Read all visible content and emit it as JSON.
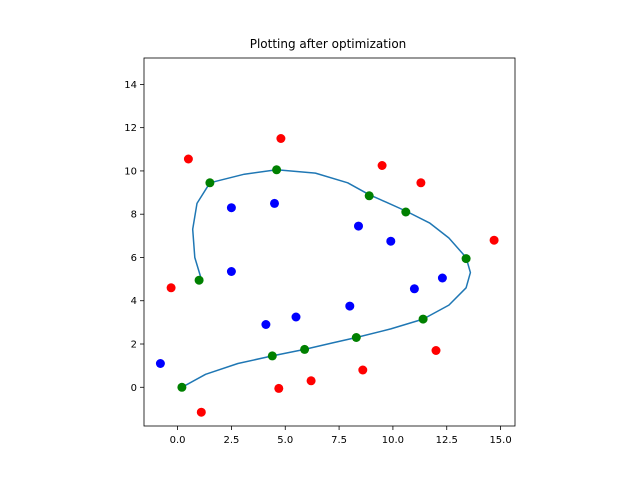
{
  "chart_data": {
    "type": "scatter",
    "title": "Plotting after optimization",
    "xlabel": "",
    "ylabel": "",
    "xlim": [
      -1.56,
      15.67
    ],
    "ylim": [
      -1.79,
      15.22
    ],
    "xticks": [
      0.0,
      2.5,
      5.0,
      7.5,
      10.0,
      12.5,
      15.0
    ],
    "xtick_labels": [
      "0.0",
      "2.5",
      "5.0",
      "7.5",
      "10.0",
      "12.5",
      "15.0"
    ],
    "yticks": [
      0,
      2,
      4,
      6,
      8,
      10,
      12,
      14
    ],
    "ytick_labels": [
      "0",
      "2",
      "4",
      "6",
      "8",
      "10",
      "12",
      "14"
    ],
    "grid": false,
    "colors": {
      "curve": "#1f77b4",
      "red": "#ff0000",
      "blue": "#0000ff",
      "green": "#008000"
    },
    "series": [
      {
        "kind": "curve",
        "color": "#1f77b4",
        "points": [
          [
            0.2,
            0.0
          ],
          [
            1.3,
            0.6
          ],
          [
            2.8,
            1.1
          ],
          [
            4.4,
            1.45
          ],
          [
            5.9,
            1.75
          ],
          [
            7.2,
            2.05
          ],
          [
            8.3,
            2.3
          ],
          [
            9.9,
            2.7
          ],
          [
            11.4,
            3.15
          ],
          [
            12.6,
            3.8
          ],
          [
            13.4,
            4.6
          ],
          [
            13.6,
            5.3
          ],
          [
            13.4,
            6.0
          ],
          [
            12.6,
            6.9
          ],
          [
            11.7,
            7.6
          ],
          [
            10.6,
            8.15
          ],
          [
            9.7,
            8.55
          ],
          [
            8.9,
            8.9
          ],
          [
            7.9,
            9.45
          ],
          [
            6.4,
            9.9
          ],
          [
            4.6,
            10.05
          ],
          [
            3.1,
            9.85
          ],
          [
            1.5,
            9.45
          ],
          [
            0.9,
            8.5
          ],
          [
            0.7,
            7.3
          ],
          [
            0.8,
            6.0
          ],
          [
            1.1,
            5.0
          ]
        ]
      },
      {
        "kind": "markers",
        "color": "#ff0000",
        "points": [
          [
            1.1,
            -1.15
          ],
          [
            4.7,
            -0.05
          ],
          [
            6.2,
            0.3
          ],
          [
            8.6,
            0.8
          ],
          [
            12.0,
            1.7
          ],
          [
            -0.3,
            4.6
          ],
          [
            14.7,
            6.8
          ],
          [
            11.3,
            9.45
          ],
          [
            9.5,
            10.25
          ],
          [
            0.5,
            10.55
          ],
          [
            4.8,
            11.5
          ]
        ]
      },
      {
        "kind": "markers",
        "color": "#0000ff",
        "points": [
          [
            -0.8,
            1.1
          ],
          [
            4.1,
            2.9
          ],
          [
            5.5,
            3.25
          ],
          [
            8.0,
            3.75
          ],
          [
            11.0,
            4.55
          ],
          [
            12.3,
            5.05
          ],
          [
            2.5,
            5.35
          ],
          [
            9.9,
            6.75
          ],
          [
            8.4,
            7.45
          ],
          [
            2.5,
            8.3
          ],
          [
            4.5,
            8.5
          ]
        ]
      },
      {
        "kind": "markers",
        "color": "#008000",
        "points": [
          [
            0.2,
            0.0
          ],
          [
            4.4,
            1.45
          ],
          [
            5.9,
            1.75
          ],
          [
            8.3,
            2.3
          ],
          [
            11.4,
            3.15
          ],
          [
            13.4,
            5.95
          ],
          [
            10.6,
            8.1
          ],
          [
            8.9,
            8.85
          ],
          [
            4.6,
            10.05
          ],
          [
            1.5,
            9.45
          ],
          [
            1.0,
            4.95
          ]
        ]
      }
    ]
  }
}
